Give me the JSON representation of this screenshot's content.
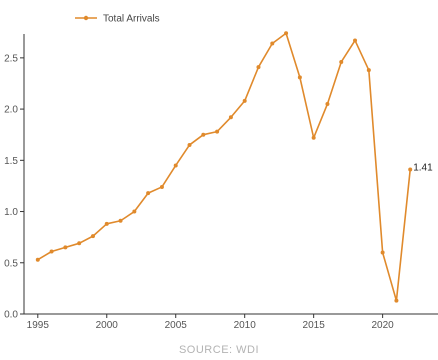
{
  "chart_data": {
    "type": "line",
    "title": "",
    "xlabel": "",
    "ylabel": "",
    "legend_position": "top-left",
    "grid": false,
    "series": [
      {
        "name": "Total Arrivals",
        "color": "#e08a2c",
        "x": [
          1995,
          1996,
          1997,
          1998,
          1999,
          2000,
          2001,
          2002,
          2003,
          2004,
          2005,
          2006,
          2007,
          2008,
          2009,
          2010,
          2011,
          2012,
          2013,
          2014,
          2015,
          2016,
          2017,
          2018,
          2019,
          2020,
          2021,
          2022
        ],
        "values": [
          0.53,
          0.61,
          0.65,
          0.69,
          0.76,
          0.88,
          0.91,
          1.0,
          1.18,
          1.24,
          1.45,
          1.65,
          1.75,
          1.78,
          1.92,
          2.08,
          2.41,
          2.64,
          2.74,
          2.31,
          1.72,
          2.05,
          2.46,
          2.67,
          2.38,
          0.6,
          0.13,
          1.41
        ]
      }
    ],
    "xlim": [
      1994,
      2023
    ],
    "ylim": [
      0,
      2.85
    ],
    "x_ticks": [
      1995,
      2000,
      2005,
      2010,
      2015,
      2020
    ],
    "y_ticks": [
      0.0,
      0.5,
      1.0,
      1.5,
      2.0,
      2.5
    ],
    "y_tick_labels": [
      "0.0",
      "0.5",
      "1.0",
      "1.5",
      "2.0",
      "2.5"
    ],
    "end_label": "1.41"
  },
  "source_text": "SOURCE: WDI"
}
